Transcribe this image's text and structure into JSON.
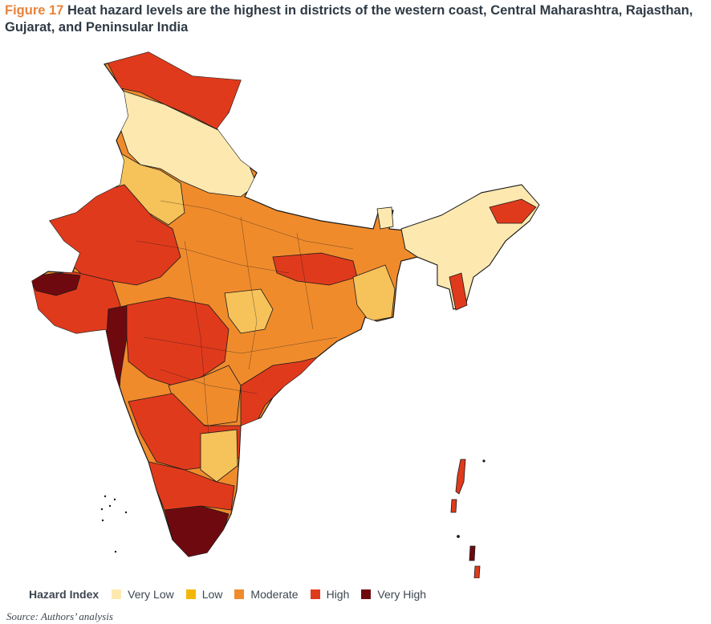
{
  "figure": {
    "label": "Figure 17",
    "title": "Heat hazard levels are the highest in districts of the western coast, Central Maharashtra, Rajasthan, Gujarat, and Peninsular India"
  },
  "legend": {
    "title": "Hazard Index",
    "items": [
      {
        "label": "Very Low",
        "color": "#fde9b0"
      },
      {
        "label": "Low",
        "color": "#f2b705"
      },
      {
        "label": "Moderate",
        "color": "#f08b2c"
      },
      {
        "label": "High",
        "color": "#e03a1c"
      },
      {
        "label": "Very High",
        "color": "#6e0a0f"
      }
    ]
  },
  "source": "Source: Authors’ analysis"
}
